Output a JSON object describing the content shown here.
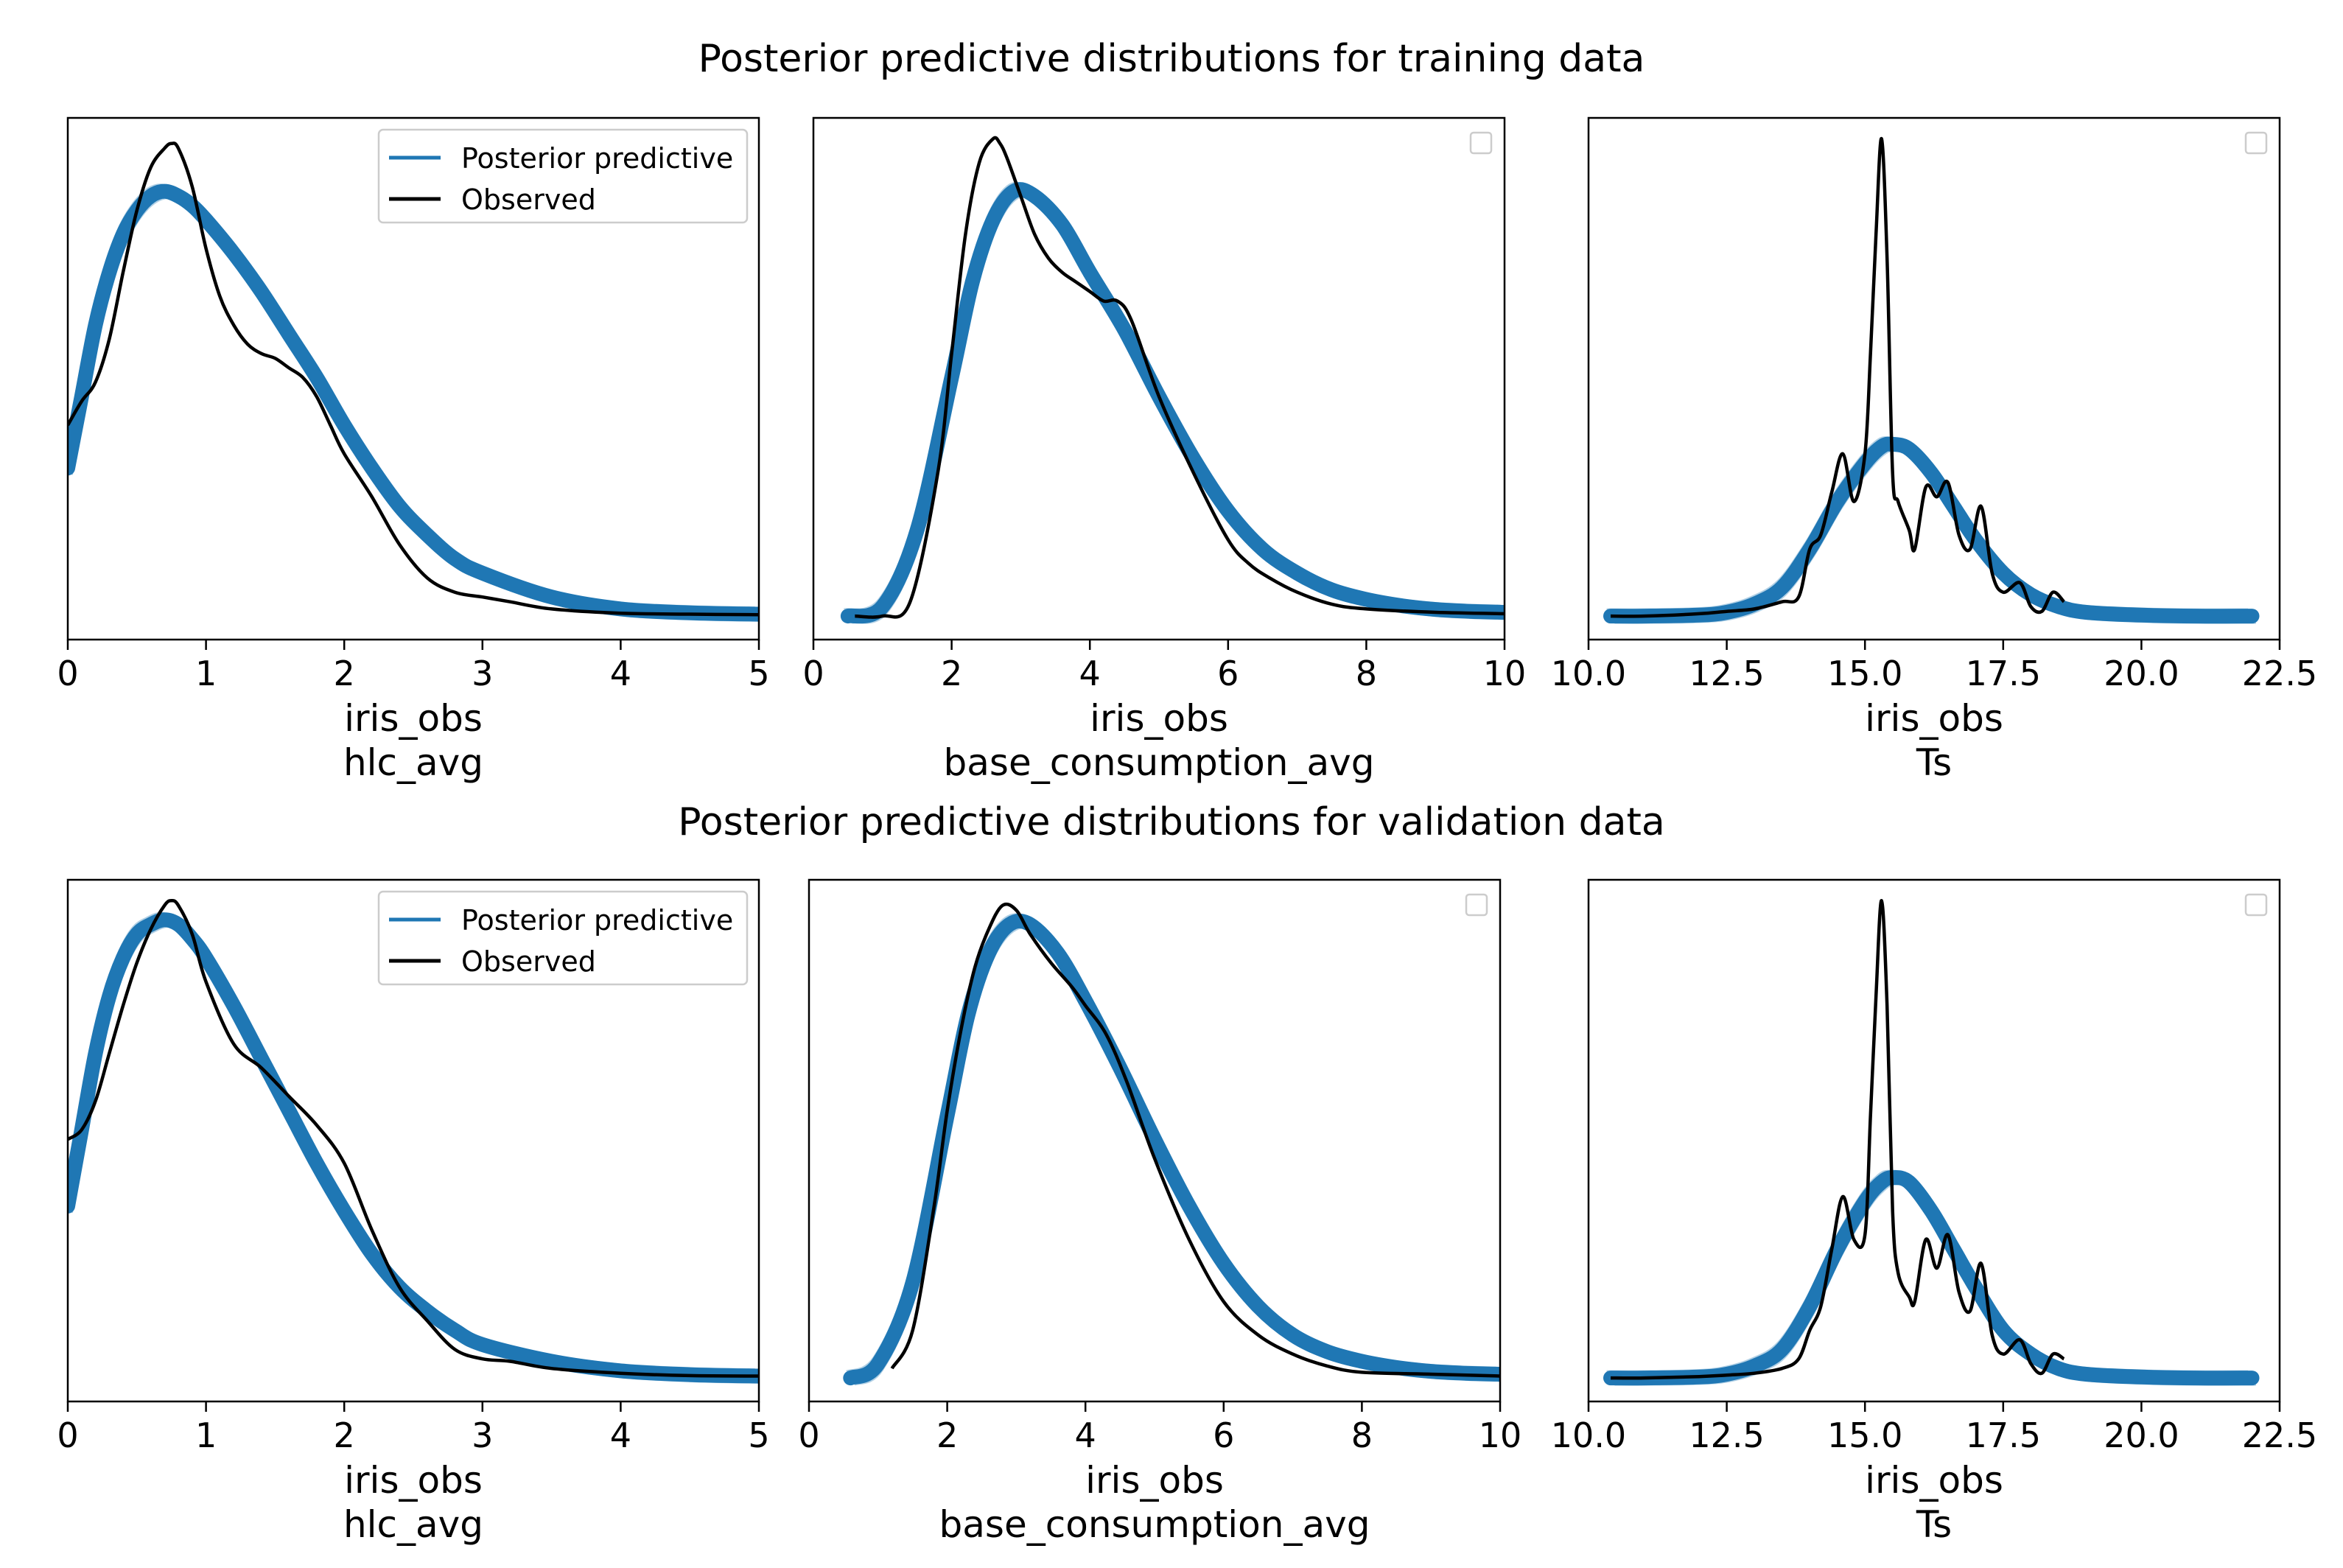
{
  "figure": {
    "training_title": "Posterior predictive distributions for training data",
    "validation_title": "Posterior predictive distributions for validation data",
    "legend": {
      "predictive": "Posterior predictive",
      "observed": "Observed"
    },
    "colors": {
      "predictive": "#1f77b4",
      "observed": "#000000",
      "axes": "#000000"
    }
  },
  "chart_data": [
    {
      "type": "line",
      "section": "training",
      "title": "",
      "xlabel_line1": "iris_obs",
      "xlabel_line2": "hlc_avg",
      "xlim": [
        0,
        5
      ],
      "ylim": [
        0,
        1
      ],
      "xticks": [
        0,
        1,
        2,
        3,
        4,
        5
      ],
      "xtick_labels": [
        "0",
        "1",
        "2",
        "3",
        "4",
        "5"
      ],
      "legend": "top-right",
      "legend_labels": [
        "Posterior predictive",
        "Observed"
      ],
      "series": [
        {
          "name": "Posterior predictive",
          "x": [
            0,
            0.1,
            0.2,
            0.3,
            0.4,
            0.5,
            0.6,
            0.7,
            0.8,
            0.9,
            1.0,
            1.2,
            1.4,
            1.6,
            1.8,
            2.0,
            2.2,
            2.4,
            2.6,
            2.8,
            3.0,
            3.5,
            4.0,
            4.5,
            5.0
          ],
          "y": [
            0.31,
            0.46,
            0.61,
            0.72,
            0.8,
            0.85,
            0.88,
            0.89,
            0.88,
            0.86,
            0.83,
            0.76,
            0.68,
            0.59,
            0.5,
            0.4,
            0.31,
            0.23,
            0.17,
            0.12,
            0.09,
            0.04,
            0.015,
            0.007,
            0.004
          ]
        },
        {
          "name": "Observed",
          "x": [
            0,
            0.1,
            0.2,
            0.3,
            0.4,
            0.5,
            0.6,
            0.7,
            0.75,
            0.8,
            0.9,
            1.0,
            1.1,
            1.2,
            1.3,
            1.4,
            1.5,
            1.6,
            1.7,
            1.8,
            1.9,
            2.0,
            2.2,
            2.4,
            2.6,
            2.8,
            3.0,
            3.2,
            3.5,
            4.0,
            4.5,
            5.0
          ],
          "y": [
            0.4,
            0.45,
            0.49,
            0.58,
            0.72,
            0.85,
            0.94,
            0.98,
            0.99,
            0.98,
            0.9,
            0.77,
            0.67,
            0.61,
            0.57,
            0.55,
            0.54,
            0.52,
            0.5,
            0.46,
            0.4,
            0.34,
            0.25,
            0.15,
            0.08,
            0.05,
            0.04,
            0.03,
            0.015,
            0.006,
            0.004,
            0.003
          ]
        }
      ]
    },
    {
      "type": "line",
      "section": "training",
      "title": "",
      "xlabel_line1": "iris_obs",
      "xlabel_line2": "base_consumption_avg",
      "xlim": [
        0,
        10
      ],
      "ylim": [
        0,
        1
      ],
      "xticks": [
        0,
        2,
        4,
        6,
        8,
        10
      ],
      "xtick_labels": [
        "0",
        "2",
        "4",
        "6",
        "8",
        "10"
      ],
      "legend": "top-right",
      "legend_labels": [],
      "series": [
        {
          "name": "Posterior predictive",
          "x": [
            0.5,
            1.0,
            1.5,
            2.0,
            2.3,
            2.6,
            2.9,
            3.2,
            3.6,
            4.0,
            4.5,
            5.0,
            5.5,
            6.0,
            6.5,
            7.0,
            7.5,
            8.0,
            8.5,
            9.0,
            9.5,
            10.0
          ],
          "y": [
            0.0,
            0.02,
            0.18,
            0.5,
            0.7,
            0.83,
            0.89,
            0.88,
            0.82,
            0.72,
            0.6,
            0.46,
            0.33,
            0.22,
            0.14,
            0.09,
            0.055,
            0.035,
            0.022,
            0.014,
            0.01,
            0.008
          ]
        },
        {
          "name": "Observed",
          "x": [
            0.6,
            1.0,
            1.4,
            1.8,
            2.0,
            2.2,
            2.4,
            2.6,
            2.7,
            2.8,
            3.0,
            3.2,
            3.4,
            3.6,
            3.8,
            4.0,
            4.2,
            4.4,
            4.6,
            5.0,
            5.5,
            6.0,
            6.3,
            6.6,
            7.0,
            7.5,
            8.0,
            9.0,
            10.0
          ],
          "y": [
            0.0,
            0.0,
            0.03,
            0.3,
            0.55,
            0.8,
            0.95,
            1.0,
            0.99,
            0.96,
            0.88,
            0.8,
            0.75,
            0.72,
            0.7,
            0.68,
            0.66,
            0.66,
            0.62,
            0.46,
            0.3,
            0.16,
            0.11,
            0.08,
            0.05,
            0.025,
            0.015,
            0.008,
            0.005
          ]
        }
      ]
    },
    {
      "type": "line",
      "section": "training",
      "title": "",
      "xlabel_line1": "iris_obs",
      "xlabel_line2": "Ts",
      "xlim": [
        10,
        22.5
      ],
      "ylim": [
        0,
        1
      ],
      "xticks": [
        10,
        12.5,
        15,
        17.5,
        20,
        22.5
      ],
      "xtick_labels": [
        "10.0",
        "12.5",
        "15.0",
        "17.5",
        "20.0",
        "22.5"
      ],
      "legend": "top-right",
      "legend_labels": [],
      "series": [
        {
          "name": "Posterior predictive",
          "x": [
            10.4,
            11.0,
            12.0,
            12.5,
            13.0,
            13.5,
            14.0,
            14.5,
            15.0,
            15.3,
            15.5,
            15.8,
            16.2,
            16.6,
            17.0,
            17.5,
            18.0,
            18.5,
            19.0,
            20.0,
            21.0,
            22.0
          ],
          "y": [
            0.0,
            0.0,
            0.002,
            0.008,
            0.025,
            0.06,
            0.14,
            0.24,
            0.32,
            0.355,
            0.36,
            0.35,
            0.3,
            0.23,
            0.16,
            0.09,
            0.045,
            0.02,
            0.008,
            0.002,
            0.0,
            0.0
          ]
        },
        {
          "name": "Observed",
          "x": [
            10.4,
            11.0,
            12.0,
            12.5,
            13.0,
            13.5,
            13.8,
            14.0,
            14.2,
            14.4,
            14.6,
            14.8,
            15.0,
            15.1,
            15.2,
            15.3,
            15.4,
            15.5,
            15.6,
            15.8,
            15.9,
            16.1,
            16.3,
            16.5,
            16.7,
            16.9,
            17.1,
            17.3,
            17.5,
            17.8,
            18.0,
            18.2,
            18.4,
            18.6
          ],
          "y": [
            0.0,
            0.0,
            0.005,
            0.01,
            0.015,
            0.03,
            0.04,
            0.14,
            0.17,
            0.26,
            0.34,
            0.24,
            0.34,
            0.55,
            0.8,
            1.0,
            0.75,
            0.3,
            0.24,
            0.18,
            0.14,
            0.27,
            0.25,
            0.28,
            0.17,
            0.14,
            0.23,
            0.09,
            0.05,
            0.07,
            0.02,
            0.01,
            0.05,
            0.03
          ]
        }
      ]
    },
    {
      "type": "line",
      "section": "validation",
      "title": "",
      "xlabel_line1": "iris_obs",
      "xlabel_line2": "hlc_avg",
      "xlim": [
        0,
        5
      ],
      "ylim": [
        0,
        1
      ],
      "xticks": [
        0,
        1,
        2,
        3,
        4,
        5
      ],
      "xtick_labels": [
        "0",
        "1",
        "2",
        "3",
        "4",
        "5"
      ],
      "legend": "top-right",
      "legend_labels": [
        "Posterior predictive",
        "Observed"
      ],
      "series": [
        {
          "name": "Posterior predictive",
          "x": [
            0,
            0.1,
            0.2,
            0.3,
            0.4,
            0.5,
            0.6,
            0.7,
            0.8,
            0.9,
            1.0,
            1.2,
            1.4,
            1.6,
            1.8,
            2.0,
            2.2,
            2.4,
            2.6,
            2.8,
            3.0,
            3.5,
            4.0,
            4.5,
            5.0
          ],
          "y": [
            0.36,
            0.52,
            0.68,
            0.8,
            0.88,
            0.93,
            0.95,
            0.96,
            0.95,
            0.92,
            0.88,
            0.78,
            0.67,
            0.56,
            0.45,
            0.35,
            0.26,
            0.19,
            0.14,
            0.1,
            0.07,
            0.035,
            0.015,
            0.007,
            0.004
          ]
        },
        {
          "name": "Observed",
          "x": [
            0,
            0.1,
            0.2,
            0.3,
            0.4,
            0.5,
            0.6,
            0.7,
            0.75,
            0.8,
            0.9,
            1.0,
            1.2,
            1.4,
            1.6,
            1.8,
            2.0,
            2.2,
            2.4,
            2.6,
            2.8,
            3.0,
            3.2,
            3.5,
            4.0,
            4.5,
            5.0
          ],
          "y": [
            0.5,
            0.52,
            0.58,
            0.68,
            0.78,
            0.87,
            0.94,
            0.99,
            1.0,
            0.99,
            0.93,
            0.83,
            0.7,
            0.65,
            0.59,
            0.53,
            0.45,
            0.31,
            0.19,
            0.12,
            0.06,
            0.04,
            0.035,
            0.02,
            0.01,
            0.005,
            0.004
          ]
        }
      ]
    },
    {
      "type": "line",
      "section": "validation",
      "title": "",
      "xlabel_line1": "iris_obs",
      "xlabel_line2": "base_consumption_avg",
      "xlim": [
        0,
        10
      ],
      "ylim": [
        0,
        1
      ],
      "xticks": [
        0,
        2,
        4,
        6,
        8,
        10
      ],
      "xtick_labels": [
        "0",
        "2",
        "4",
        "6",
        "8",
        "10"
      ],
      "legend": "top-right",
      "legend_labels": [],
      "series": [
        {
          "name": "Posterior predictive",
          "x": [
            0.6,
            1.0,
            1.5,
            2.0,
            2.3,
            2.6,
            2.9,
            3.2,
            3.6,
            4.0,
            4.5,
            5.0,
            5.5,
            6.0,
            6.5,
            7.0,
            7.5,
            8.0,
            8.5,
            9.0,
            9.5,
            10.0
          ],
          "y": [
            0.0,
            0.03,
            0.2,
            0.55,
            0.76,
            0.89,
            0.95,
            0.95,
            0.89,
            0.79,
            0.65,
            0.5,
            0.36,
            0.24,
            0.15,
            0.09,
            0.055,
            0.035,
            0.022,
            0.014,
            0.01,
            0.008
          ]
        },
        {
          "name": "Observed",
          "x": [
            1.2,
            1.5,
            1.8,
            2.0,
            2.2,
            2.4,
            2.6,
            2.8,
            3.0,
            3.2,
            3.5,
            3.8,
            4.0,
            4.3,
            4.6,
            5.0,
            5.5,
            6.0,
            6.5,
            7.0,
            7.5,
            8.0,
            9.0,
            10.0
          ],
          "y": [
            0.02,
            0.1,
            0.35,
            0.56,
            0.73,
            0.86,
            0.94,
            0.99,
            0.98,
            0.93,
            0.87,
            0.82,
            0.78,
            0.72,
            0.62,
            0.46,
            0.29,
            0.16,
            0.09,
            0.05,
            0.025,
            0.012,
            0.008,
            0.004
          ]
        }
      ]
    },
    {
      "type": "line",
      "section": "validation",
      "title": "",
      "xlabel_line1": "iris_obs",
      "xlabel_line2": "Ts",
      "xlim": [
        10,
        22.5
      ],
      "ylim": [
        0,
        1
      ],
      "xticks": [
        10,
        12.5,
        15,
        17.5,
        20,
        22.5
      ],
      "xtick_labels": [
        "10.0",
        "12.5",
        "15.0",
        "17.5",
        "20.0",
        "22.5"
      ],
      "legend": "top-right",
      "legend_labels": [],
      "series": [
        {
          "name": "Posterior predictive",
          "x": [
            10.4,
            11.0,
            12.0,
            12.5,
            13.0,
            13.5,
            14.0,
            14.5,
            15.0,
            15.3,
            15.5,
            15.8,
            16.2,
            16.6,
            17.0,
            17.5,
            18.0,
            18.5,
            19.0,
            20.0,
            21.0,
            22.0
          ],
          "y": [
            0.0,
            0.0,
            0.002,
            0.008,
            0.025,
            0.06,
            0.15,
            0.27,
            0.37,
            0.41,
            0.42,
            0.41,
            0.35,
            0.27,
            0.19,
            0.1,
            0.05,
            0.02,
            0.008,
            0.002,
            0.0,
            0.0
          ]
        },
        {
          "name": "Observed",
          "x": [
            10.4,
            11.0,
            12.0,
            12.5,
            13.0,
            13.5,
            13.8,
            14.0,
            14.2,
            14.4,
            14.6,
            14.8,
            15.0,
            15.1,
            15.2,
            15.3,
            15.4,
            15.5,
            15.6,
            15.8,
            15.9,
            16.1,
            16.3,
            16.5,
            16.7,
            16.9,
            17.1,
            17.3,
            17.5,
            17.8,
            18.0,
            18.2,
            18.4,
            18.6
          ],
          "y": [
            0.0,
            0.0,
            0.003,
            0.006,
            0.01,
            0.02,
            0.04,
            0.1,
            0.15,
            0.27,
            0.38,
            0.29,
            0.3,
            0.55,
            0.8,
            1.0,
            0.78,
            0.35,
            0.22,
            0.17,
            0.16,
            0.29,
            0.23,
            0.3,
            0.18,
            0.14,
            0.24,
            0.09,
            0.05,
            0.08,
            0.03,
            0.01,
            0.05,
            0.04
          ]
        }
      ]
    }
  ]
}
